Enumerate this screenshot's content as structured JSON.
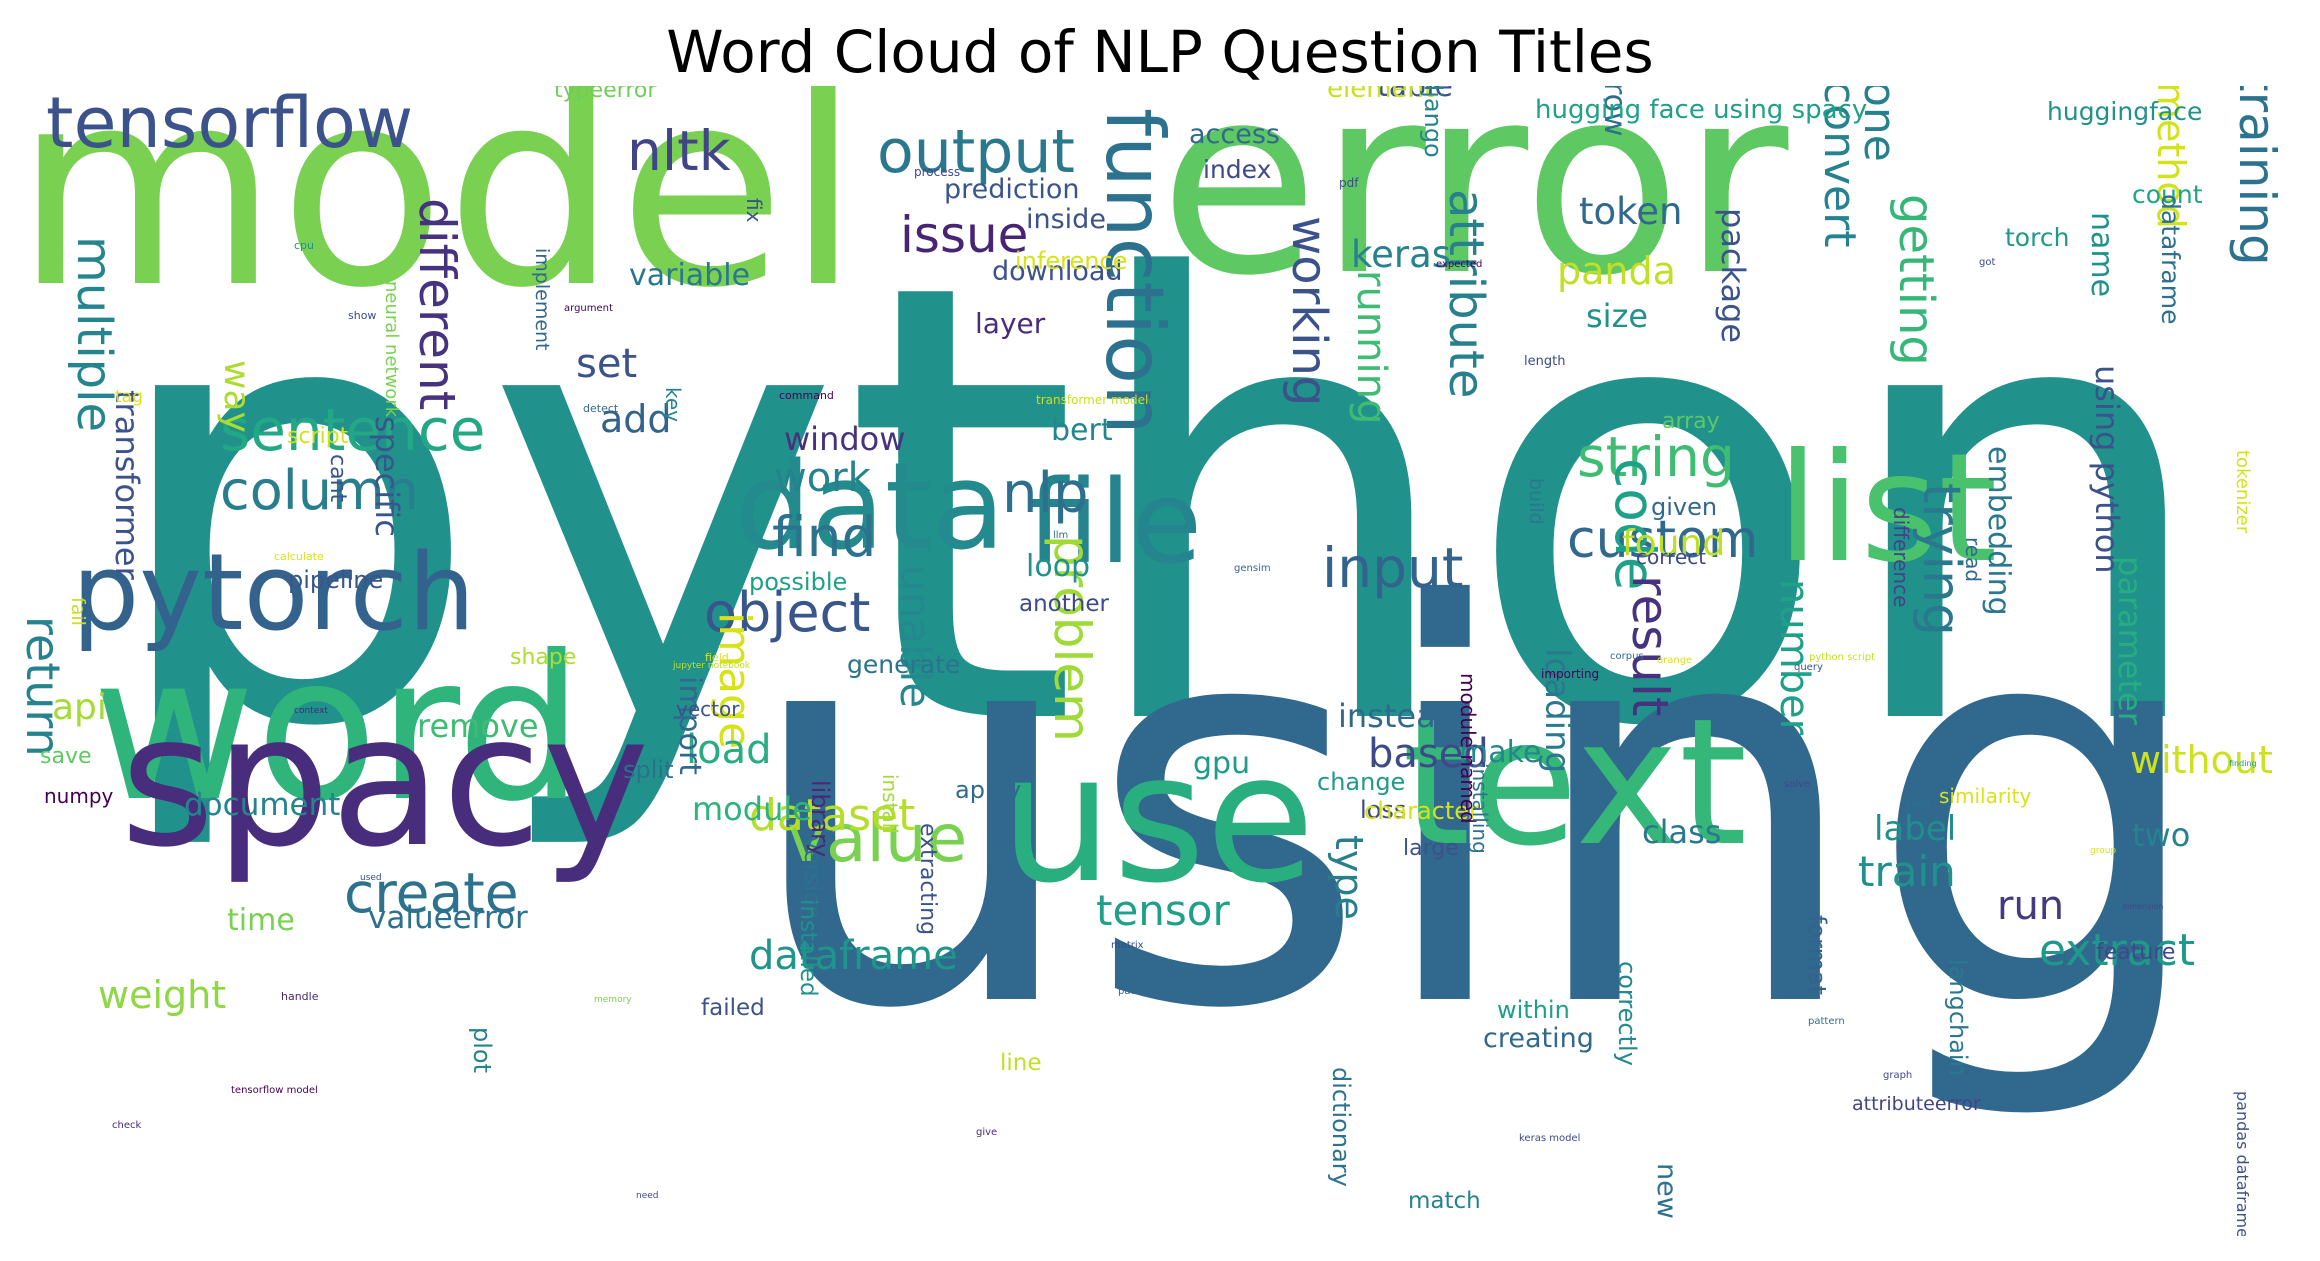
{
  "title": "Word Cloud of NLP Question Titles",
  "words": [
    {
      "text": "python",
      "color": "#21918c"
    },
    {
      "text": "using",
      "color": "#31688e"
    },
    {
      "text": "error",
      "color": "#5ec962"
    },
    {
      "text": "model",
      "color": "#7ad151"
    },
    {
      "text": "word",
      "color": "#2fb47c"
    },
    {
      "text": "spacy",
      "color": "#472d7b"
    },
    {
      "text": "text",
      "color": "#35b779"
    },
    {
      "text": "use",
      "color": "#29af7f"
    },
    {
      "text": "data",
      "color": "#238a8d"
    },
    {
      "text": "file",
      "color": "#25858e"
    },
    {
      "text": "list",
      "color": "#4ac16d"
    },
    {
      "text": "function",
      "color": "#2c728e"
    },
    {
      "text": "pytorch",
      "color": "#33638d"
    },
    {
      "text": "tensorflow",
      "color": "#3b528b"
    },
    {
      "text": "output",
      "color": "#2a788e"
    },
    {
      "text": "nltk",
      "color": "#414487"
    },
    {
      "text": "sentence",
      "color": "#22a884"
    },
    {
      "text": "column",
      "color": "#287d8e"
    },
    {
      "text": "object",
      "color": "#39568c"
    },
    {
      "text": "value",
      "color": "#7ad151"
    },
    {
      "text": "create",
      "color": "#2c728e"
    },
    {
      "text": "find",
      "color": "#2c728e"
    },
    {
      "text": "string",
      "color": "#3fbc73"
    },
    {
      "text": "custom",
      "color": "#31688e"
    },
    {
      "text": "input",
      "color": "#33638d"
    },
    {
      "text": "code",
      "color": "#1fa088"
    },
    {
      "text": "training",
      "color": "#2c728e"
    },
    {
      "text": "issue",
      "color": "#482475"
    },
    {
      "text": "different",
      "color": "#46327e"
    },
    {
      "text": "multiple",
      "color": "#25858e"
    },
    {
      "text": "working",
      "color": "#3b528b"
    },
    {
      "text": "attribute",
      "color": "#27808e"
    },
    {
      "text": "convert",
      "color": "#26828e"
    },
    {
      "text": "one",
      "color": "#27808e"
    },
    {
      "text": "getting",
      "color": "#35b779"
    },
    {
      "text": "nlp",
      "color": "#2d708e"
    },
    {
      "text": "work",
      "color": "#25838e"
    },
    {
      "text": "running",
      "color": "#3fbc73"
    },
    {
      "text": "result",
      "color": "#46327e"
    },
    {
      "text": "trying",
      "color": "#2a788e"
    },
    {
      "text": "problem",
      "color": "#a0da39"
    },
    {
      "text": "dataset",
      "color": "#b5de2b"
    },
    {
      "text": "tensor",
      "color": "#1fa088"
    },
    {
      "text": "train",
      "color": "#21918c"
    },
    {
      "text": "run",
      "color": "#443983"
    },
    {
      "text": "extract",
      "color": "#1f9a8a"
    },
    {
      "text": "dataframe",
      "color": "#1f968b"
    },
    {
      "text": "return",
      "color": "#26828e"
    },
    {
      "text": "weight",
      "color": "#8fd744"
    },
    {
      "text": "keras",
      "color": "#26828e"
    },
    {
      "text": "token",
      "color": "#31688e"
    },
    {
      "text": "panda",
      "color": "#c2df23"
    },
    {
      "text": "method",
      "color": "#d2e21b"
    },
    {
      "text": "image",
      "color": "#d8e219"
    },
    {
      "text": "unable",
      "color": "#23898e"
    },
    {
      "text": "load",
      "color": "#27ad81"
    },
    {
      "text": "module",
      "color": "#2eb37c"
    },
    {
      "text": "based",
      "color": "#3e4989"
    },
    {
      "text": "number",
      "color": "#1fa088"
    },
    {
      "text": "type",
      "color": "#277f8e"
    },
    {
      "text": "label",
      "color": "#228d8d"
    },
    {
      "text": "two",
      "color": "#26828e"
    },
    {
      "text": "without",
      "color": "#cde11d"
    },
    {
      "text": "class",
      "color": "#2a788e"
    },
    {
      "text": "api",
      "color": "#a5db36"
    },
    {
      "text": "way",
      "color": "#addc30"
    },
    {
      "text": "set",
      "color": "#3b528b"
    },
    {
      "text": "add",
      "color": "#33638d"
    },
    {
      "text": "window",
      "color": "#46327e"
    },
    {
      "text": "variable",
      "color": "#2a788e"
    },
    {
      "text": "layer",
      "color": "#472d7b"
    },
    {
      "text": "loop",
      "color": "#21918c"
    },
    {
      "text": "bert",
      "color": "#25858e"
    },
    {
      "text": "instead",
      "color": "#31688e"
    },
    {
      "text": "gpu",
      "color": "#1e9b8a"
    },
    {
      "text": "loading",
      "color": "#2a788e"
    },
    {
      "text": "found",
      "color": "#bddf26"
    },
    {
      "text": "size",
      "color": "#21918c"
    },
    {
      "text": "package",
      "color": "#3b528b"
    },
    {
      "text": "name",
      "color": "#20928c"
    },
    {
      "text": "parameter",
      "color": "#27ad81"
    },
    {
      "text": "using python",
      "color": "#3b528b"
    },
    {
      "text": "embedding",
      "color": "#2a788e"
    },
    {
      "text": "row",
      "color": "#2d708e"
    },
    {
      "text": "table",
      "color": "#3b528b"
    },
    {
      "text": "specific",
      "color": "#39568c"
    },
    {
      "text": "transformer",
      "color": "#3b528b"
    },
    {
      "text": "remove",
      "color": "#3fbc73"
    },
    {
      "text": "document",
      "color": "#25858e"
    },
    {
      "text": "time",
      "color": "#7ad151"
    },
    {
      "text": "valueerror",
      "color": "#2d708e"
    },
    {
      "text": "import",
      "color": "#31688e"
    },
    {
      "text": "make",
      "color": "#24868e"
    },
    {
      "text": "prediction",
      "color": "#39568c"
    },
    {
      "text": "inside",
      "color": "#3b528b"
    },
    {
      "text": "download",
      "color": "#3b528b"
    },
    {
      "text": "inference",
      "color": "#d8e219"
    },
    {
      "text": "access",
      "color": "#31688e"
    },
    {
      "text": "index",
      "color": "#3e4989"
    },
    {
      "text": "element",
      "color": "#c8e020"
    },
    {
      "text": "django",
      "color": "#25838e"
    },
    {
      "text": "hugging face using spacy",
      "color": "#1fa088"
    },
    {
      "text": "huggingface",
      "color": "#21918c"
    },
    {
      "text": "torch",
      "color": "#1f9a8a"
    },
    {
      "text": "count",
      "color": "#20a486"
    },
    {
      "text": "dataframe",
      "color": "#2d708e"
    },
    {
      "text": "possible",
      "color": "#1fa088"
    },
    {
      "text": "another",
      "color": "#3e4989"
    },
    {
      "text": "generate",
      "color": "#2c728e"
    },
    {
      "text": "split",
      "color": "#2d708e"
    },
    {
      "text": "change",
      "color": "#1f9a8a"
    },
    {
      "text": "loss",
      "color": "#3e4989"
    },
    {
      "text": "character",
      "color": "#d8e219"
    },
    {
      "text": "large",
      "color": "#3b528b"
    },
    {
      "text": "version",
      "color": "#2c728e"
    },
    {
      "text": "library",
      "color": "#482878"
    },
    {
      "text": "installed",
      "color": "#21918c"
    },
    {
      "text": "install",
      "color": "#a5db36"
    },
    {
      "text": "extracting",
      "color": "#3b528b"
    },
    {
      "text": "apply",
      "color": "#31688e"
    },
    {
      "text": "failed",
      "color": "#3b528b"
    },
    {
      "text": "line",
      "color": "#c2df23"
    },
    {
      "text": "match",
      "color": "#26828e"
    },
    {
      "text": "creating",
      "color": "#31688e"
    },
    {
      "text": "within",
      "color": "#1fa088"
    },
    {
      "text": "dictionary",
      "color": "#2c728e"
    },
    {
      "text": "format",
      "color": "#33638d"
    },
    {
      "text": "langchain",
      "color": "#2a788e"
    },
    {
      "text": "correctly",
      "color": "#23898e"
    },
    {
      "text": "attributeerror",
      "color": "#414487"
    },
    {
      "text": "new",
      "color": "#2c728e"
    },
    {
      "text": "plot",
      "color": "#26828e"
    },
    {
      "text": "script",
      "color": "#d2e21b"
    },
    {
      "text": "cant",
      "color": "#39568c"
    },
    {
      "text": "pipeline",
      "color": "#39568c"
    },
    {
      "text": "save",
      "color": "#5ec962"
    },
    {
      "text": "numpy",
      "color": "#440154"
    },
    {
      "text": "shape",
      "color": "#addc30"
    },
    {
      "text": "vector",
      "color": "#3b528b"
    },
    {
      "text": "fail",
      "color": "#c8e020"
    },
    {
      "text": "neural network",
      "color": "#7ad151"
    },
    {
      "text": "implement",
      "color": "#31688e"
    },
    {
      "text": "typeerror",
      "color": "#6ece58"
    },
    {
      "text": "fix",
      "color": "#3b528b"
    },
    {
      "text": "array",
      "color": "#5ec962"
    },
    {
      "text": "given",
      "color": "#31688e"
    },
    {
      "text": "correct",
      "color": "#3e4989"
    },
    {
      "text": "build",
      "color": "#2a788e"
    },
    {
      "text": "module named",
      "color": "#440154"
    },
    {
      "text": "installing",
      "color": "#2c728e"
    },
    {
      "text": "read",
      "color": "#31688e"
    },
    {
      "text": "difference",
      "color": "#414487"
    },
    {
      "text": "tokenizer",
      "color": "#d2e21b"
    },
    {
      "text": "pandas dataframe",
      "color": "#3b528b"
    },
    {
      "text": "similarity",
      "color": "#d8e219"
    },
    {
      "text": "feature",
      "color": "#3e4989"
    },
    {
      "text": "key",
      "color": "#26828e"
    },
    {
      "text": "tag",
      "color": "#d8e219"
    },
    {
      "text": "v",
      "color": "#3b528b"
    },
    {
      "text": "google colab",
      "color": "#b5de2b"
    },
    {
      "text": "process",
      "color": "#3e4989"
    },
    {
      "text": "pdf",
      "color": "#3e4989"
    },
    {
      "text": "cpu",
      "color": "#21918c"
    },
    {
      "text": "got",
      "color": "#3e4989"
    },
    {
      "text": "show",
      "color": "#3e4989"
    },
    {
      "text": "argument",
      "color": "#440154"
    },
    {
      "text": "expected",
      "color": "#440154"
    },
    {
      "text": "length",
      "color": "#3e4989"
    },
    {
      "text": "command",
      "color": "#440154"
    },
    {
      "text": "transformer model",
      "color": "#c8e020"
    },
    {
      "text": "detect",
      "color": "#31688e"
    },
    {
      "text": "llm",
      "color": "#2c728e"
    },
    {
      "text": "calculate",
      "color": "#d8e219"
    },
    {
      "text": "gensim",
      "color": "#31688e"
    },
    {
      "text": "field",
      "color": "#d8e219"
    },
    {
      "text": "jupyter notebook",
      "color": "#c2df23"
    },
    {
      "text": "importing",
      "color": "#440154"
    },
    {
      "text": "orange",
      "color": "#d8e219"
    },
    {
      "text": "corpus",
      "color": "#31688e"
    },
    {
      "text": "python script",
      "color": "#c2df23"
    },
    {
      "text": "query",
      "color": "#3b528b"
    },
    {
      "text": "context",
      "color": "#482878"
    },
    {
      "text": "solve",
      "color": "#3e4989"
    },
    {
      "text": "finding",
      "color": "#1f9a8a"
    },
    {
      "text": "cuda",
      "color": "#2c728e"
    },
    {
      "text": "group",
      "color": "#d8e219"
    },
    {
      "text": "dimension",
      "color": "#3e4989"
    },
    {
      "text": "used",
      "color": "#3e4989"
    },
    {
      "text": "matrix",
      "color": "#3e4989"
    },
    {
      "text": "path",
      "color": "#31688e"
    },
    {
      "text": "handle",
      "color": "#482878"
    },
    {
      "text": "memory",
      "color": "#7ad151"
    },
    {
      "text": "pattern",
      "color": "#2c728e"
    },
    {
      "text": "graph",
      "color": "#3e4989"
    },
    {
      "text": "tensorflow model",
      "color": "#440154"
    },
    {
      "text": "check",
      "color": "#482878"
    },
    {
      "text": "give",
      "color": "#482878"
    },
    {
      "text": "keras model",
      "color": "#3e4989"
    },
    {
      "text": "need",
      "color": "#3e4989"
    },
    {
      "text": "update",
      "color": "#3e4989"
    }
  ]
}
